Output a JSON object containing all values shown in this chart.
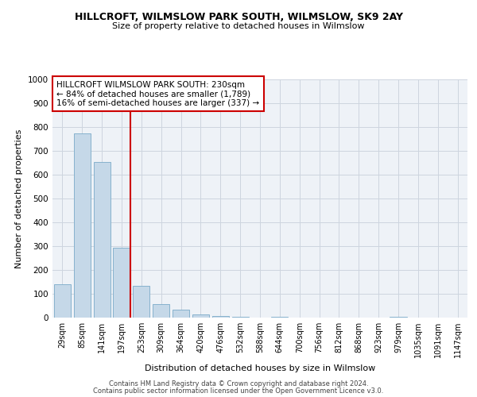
{
  "title": "HILLCROFT, WILMSLOW PARK SOUTH, WILMSLOW, SK9 2AY",
  "subtitle": "Size of property relative to detached houses in Wilmslow",
  "bar_values": [
    140,
    775,
    655,
    295,
    135,
    57,
    32,
    15,
    8,
    5,
    0,
    3,
    0,
    0,
    0,
    0,
    0,
    3,
    0,
    0,
    0
  ],
  "bin_labels": [
    "29sqm",
    "85sqm",
    "141sqm",
    "197sqm",
    "253sqm",
    "309sqm",
    "364sqm",
    "420sqm",
    "476sqm",
    "532sqm",
    "588sqm",
    "644sqm",
    "700sqm",
    "756sqm",
    "812sqm",
    "868sqm",
    "923sqm",
    "979sqm",
    "1035sqm",
    "1091sqm",
    "1147sqm"
  ],
  "bar_color": "#c5d8e8",
  "bar_edge_color": "#7aaac8",
  "ylabel": "Number of detached properties",
  "xlabel": "Distribution of detached houses by size in Wilmslow",
  "ylim": [
    0,
    1000
  ],
  "yticks": [
    0,
    100,
    200,
    300,
    400,
    500,
    600,
    700,
    800,
    900,
    1000
  ],
  "annotation_line1": "HILLCROFT WILMSLOW PARK SOUTH: 230sqm",
  "annotation_line2": "← 84% of detached houses are smaller (1,789)",
  "annotation_line3": "16% of semi-detached houses are larger (337) →",
  "vline_color": "#cc0000",
  "box_edge_color": "#cc0000",
  "footer_line1": "Contains HM Land Registry data © Crown copyright and database right 2024.",
  "footer_line2": "Contains public sector information licensed under the Open Government Licence v3.0.",
  "bg_color": "#eef2f7",
  "grid_color": "#cdd5df"
}
